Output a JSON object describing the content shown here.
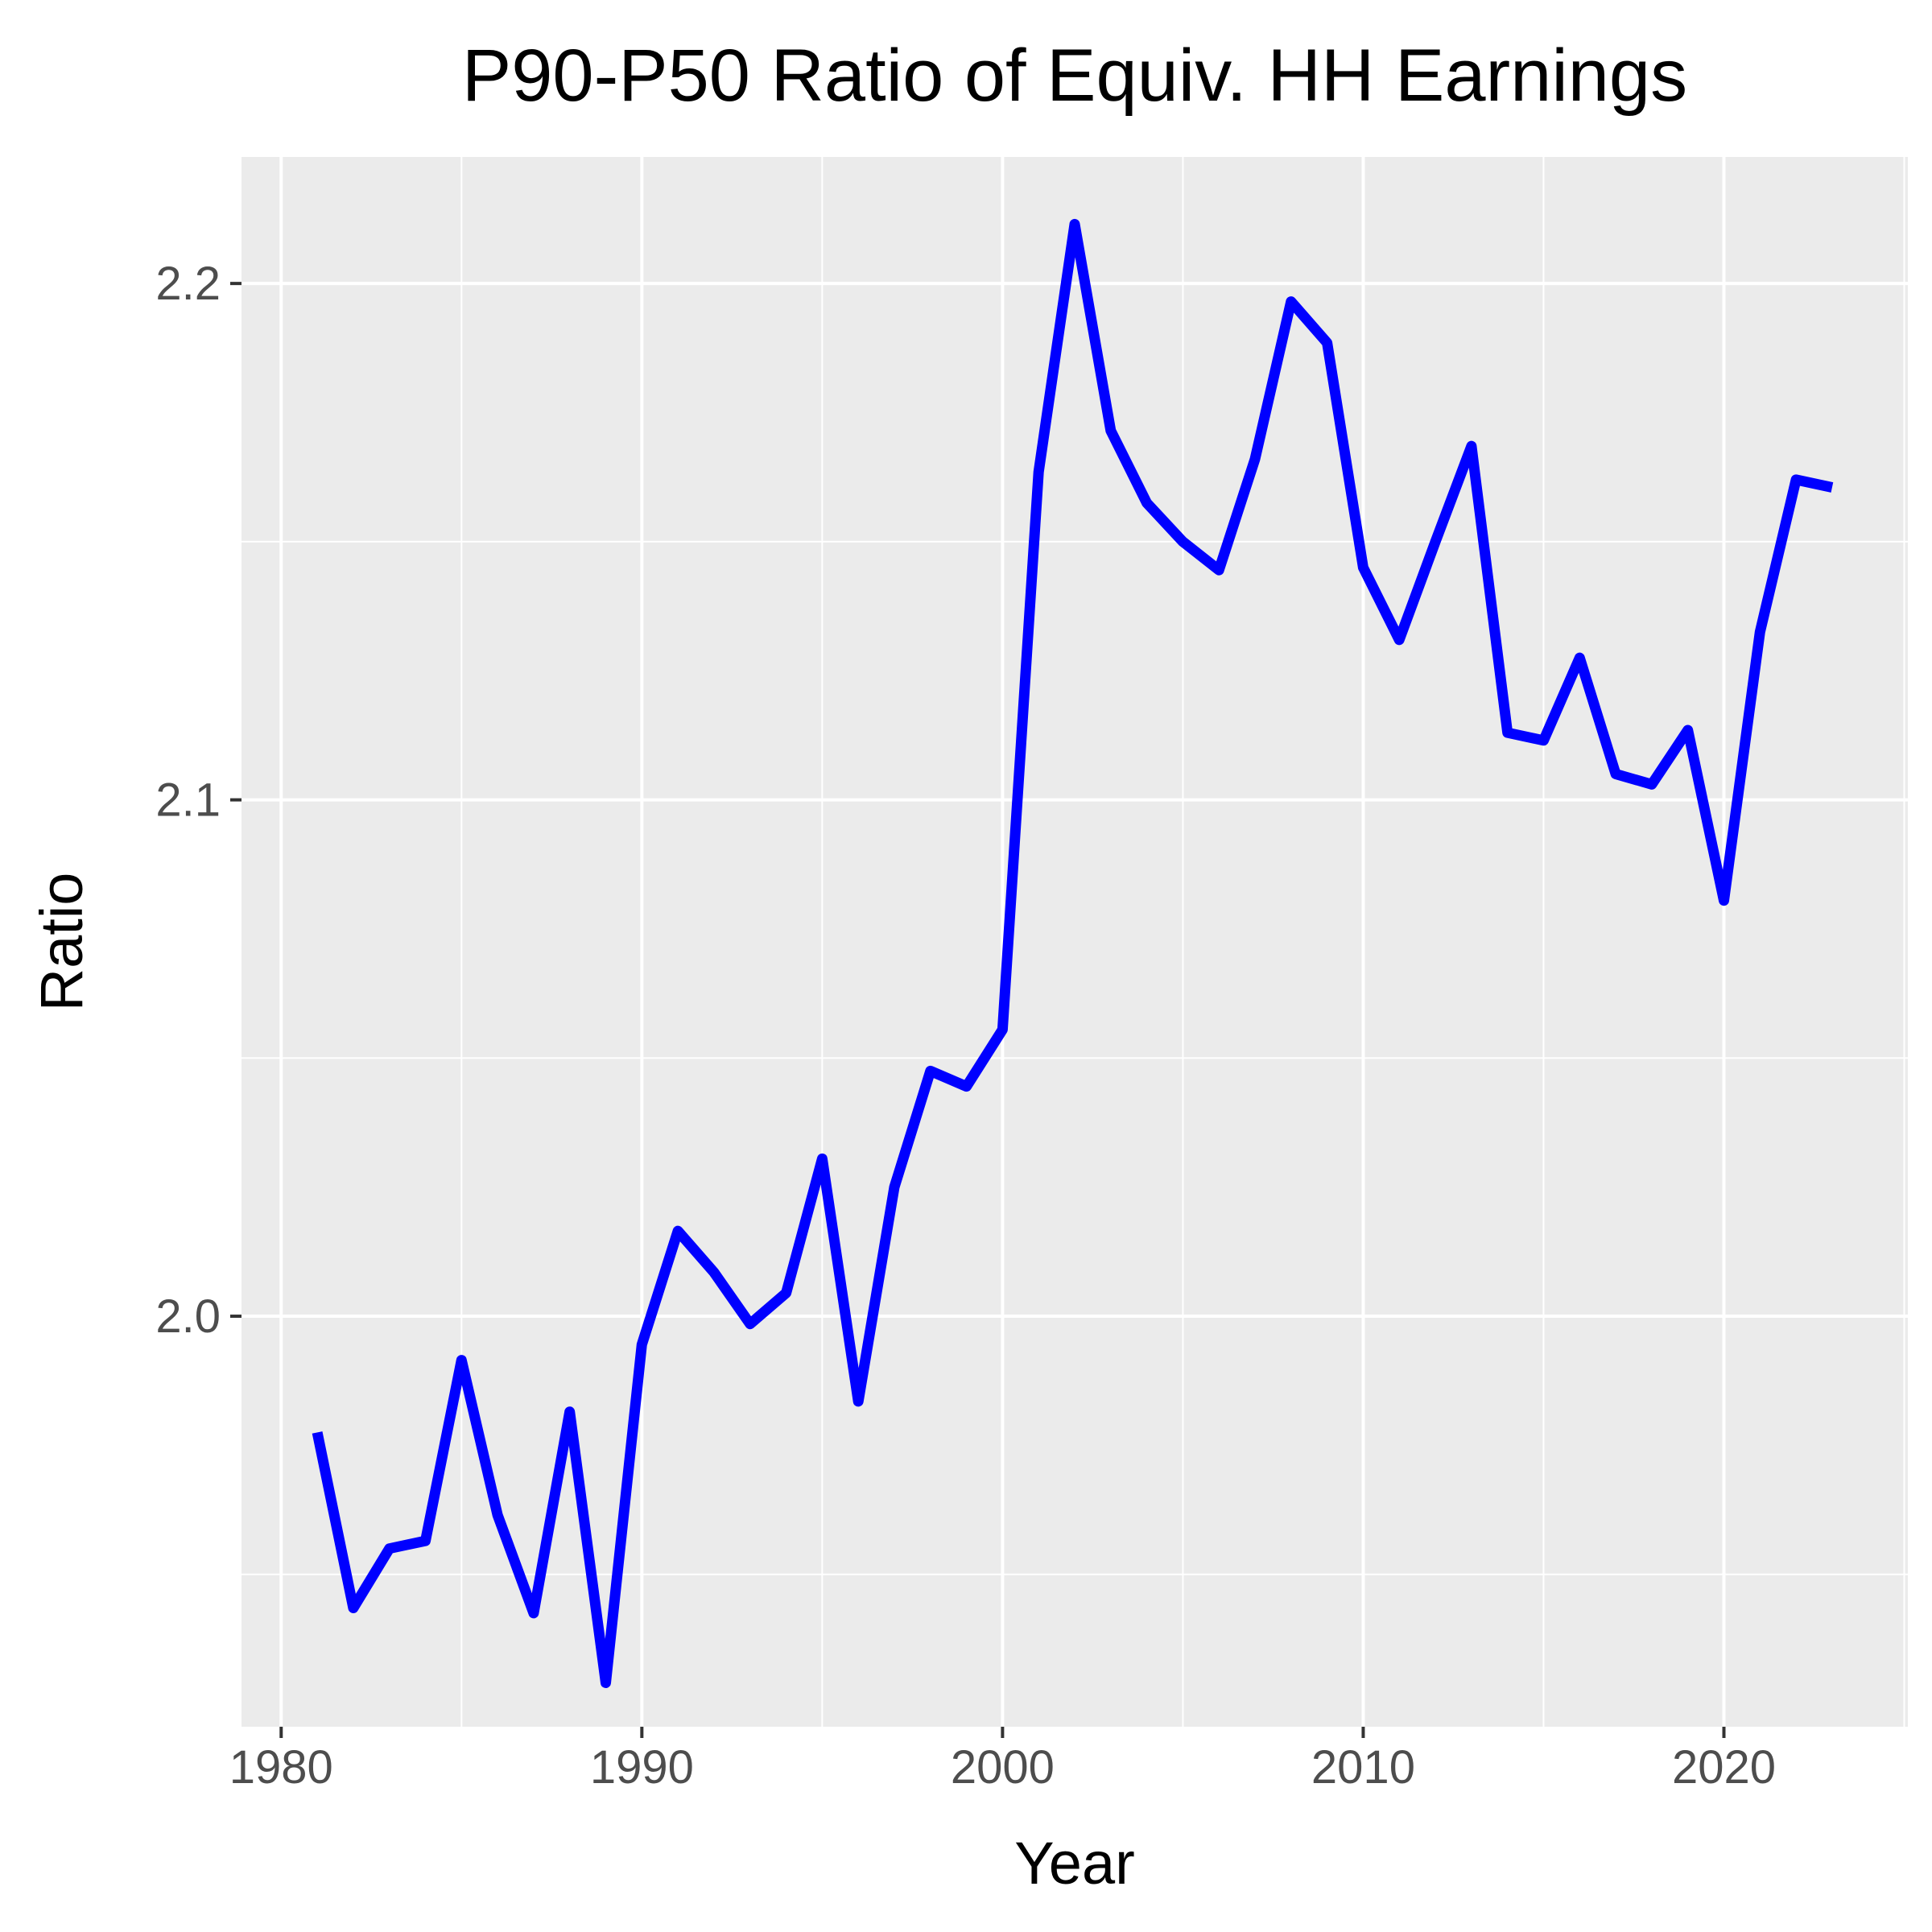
{
  "chart_data": {
    "type": "line",
    "title": "P90-P50 Ratio of Equiv. HH Earnings",
    "xlabel": "Year",
    "ylabel": "Ratio",
    "xlim": [
      1978.9,
      2025.1
    ],
    "ylim": [
      1.9205,
      2.2245
    ],
    "x_ticks": [
      1980,
      1990,
      2000,
      2010,
      2020
    ],
    "x_tick_labels": [
      "1980",
      "1990",
      "2000",
      "2010",
      "2020"
    ],
    "y_ticks": [
      2.0,
      2.1,
      2.2
    ],
    "y_tick_labels": [
      "2.0",
      "2.1",
      "2.2"
    ],
    "grid": true,
    "legend": "none",
    "colors": {
      "line": "#0000ff",
      "panel": "#ebebeb",
      "grid": "#ffffff"
    },
    "x": [
      1981,
      1982,
      1983,
      1984,
      1985,
      1986,
      1987,
      1988,
      1989,
      1990,
      1991,
      1992,
      1993,
      1994,
      1995,
      1996,
      1997,
      1998,
      1999,
      2000,
      2001,
      2002,
      2003,
      2004,
      2005,
      2006,
      2007,
      2008,
      2009,
      2010,
      2011,
      2012,
      2013,
      2014,
      2015,
      2016,
      2017,
      2018,
      2019,
      2020,
      2021,
      2022,
      2023
    ],
    "series": [
      {
        "values": [
          1.9775,
          1.9435,
          1.955,
          1.9565,
          1.9915,
          1.9615,
          1.9425,
          1.9815,
          1.929,
          1.9945,
          2.0165,
          2.0085,
          1.9985,
          2.0045,
          2.0305,
          1.9835,
          2.025,
          2.0475,
          2.0445,
          2.0555,
          2.1635,
          2.2115,
          2.1715,
          2.1575,
          2.15,
          2.1445,
          2.166,
          2.1965,
          2.1885,
          2.145,
          2.131,
          2.15,
          2.1685,
          2.113,
          2.1115,
          2.1275,
          2.105,
          2.103,
          2.1135,
          2.0805,
          2.1325,
          2.162,
          2.1605
        ]
      }
    ]
  }
}
